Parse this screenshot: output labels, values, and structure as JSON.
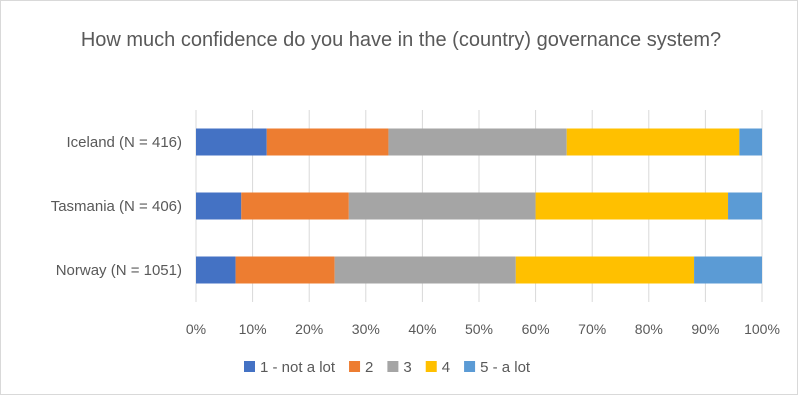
{
  "chart_data": {
    "type": "bar",
    "orientation": "horizontal",
    "stacked": "percent",
    "title": "How much confidence do you have in the (country) governance system?",
    "categories": [
      "Iceland (N = 416)",
      "Tasmania (N = 406)",
      "Norway (N = 1051)"
    ],
    "series": [
      {
        "name": "1 - not a lot",
        "color": "#4472c4",
        "values": [
          12.5,
          8,
          7
        ]
      },
      {
        "name": "2",
        "color": "#ed7d31",
        "values": [
          21.5,
          19,
          17.5
        ]
      },
      {
        "name": "3",
        "color": "#a5a5a5",
        "values": [
          31.5,
          33,
          32
        ]
      },
      {
        "name": "4",
        "color": "#ffc000",
        "values": [
          30.5,
          34,
          31.5
        ]
      },
      {
        "name": "5 - a lot",
        "color": "#5b9bd5",
        "values": [
          4,
          6,
          12
        ]
      }
    ],
    "xticks": [
      "0%",
      "10%",
      "20%",
      "30%",
      "40%",
      "50%",
      "60%",
      "70%",
      "80%",
      "90%",
      "100%"
    ],
    "xlim": [
      0,
      100
    ],
    "grid": true,
    "legend": "bottom"
  }
}
